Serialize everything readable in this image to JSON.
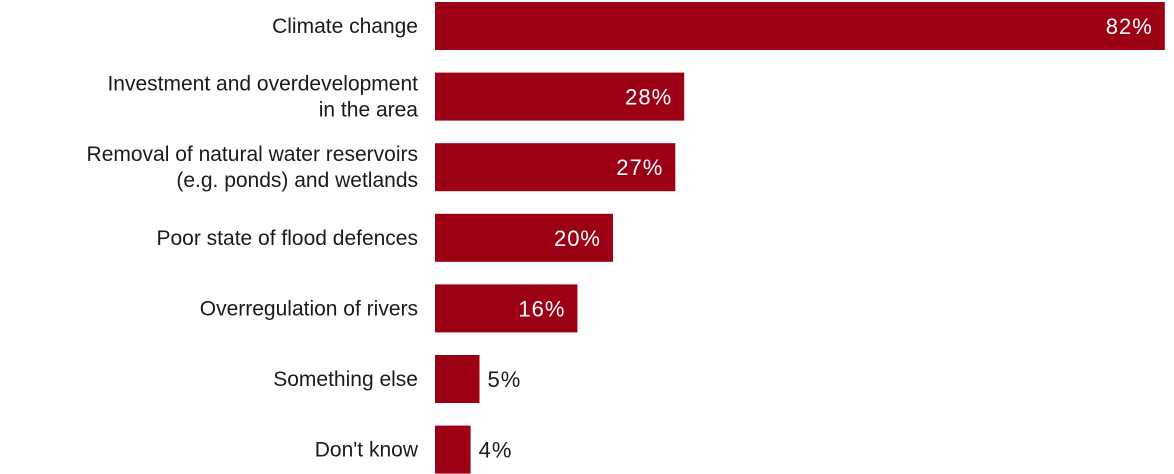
{
  "chart_data": {
    "type": "bar",
    "orientation": "horizontal",
    "categories": [
      "Climate change",
      "Investment and overdevelopment\nin the area",
      "Removal of natural water reservoirs\n(e.g. ponds) and wetlands",
      "Poor state of flood defences",
      "Overregulation of rivers",
      "Something else",
      "Don't know"
    ],
    "values": [
      82,
      28,
      27,
      20,
      16,
      5,
      4
    ],
    "value_labels": [
      "82%",
      "28%",
      "27%",
      "20%",
      "16%",
      "5%",
      "4%"
    ],
    "unit": "%",
    "xlim": [
      0,
      100
    ],
    "title": "",
    "xlabel": "",
    "ylabel": "",
    "grid": false,
    "legend": "none",
    "colors": {
      "bar": "#9c0015",
      "label_inside": "#ffffff",
      "label_outside": "#1a1a1a",
      "category_text": "#1a1a1a"
    }
  }
}
